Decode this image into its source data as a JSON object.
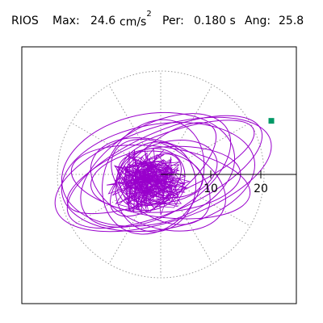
{
  "header": {
    "station": "RIOS",
    "max_label": "Max:",
    "max_value": "24.6",
    "max_unit": "cm/s",
    "max_unit_exp": "2",
    "per_label": "Per:",
    "per_value": "0.180 s",
    "ang_label": "Ang:",
    "ang_value": "25.8"
  },
  "chart_data": {
    "type": "scatter",
    "description_units": "cm/s^2",
    "polar_rings": [
      10,
      20
    ],
    "tick_labels": [
      "10",
      "20"
    ],
    "max_point": {
      "x": 22.1,
      "y": 10.7
    },
    "orbit_loops": [
      {
        "rx": 22.5,
        "ry": 9.5,
        "rot": 18,
        "cx": 0.5,
        "cy": 0.0
      },
      {
        "rx": 21.0,
        "ry": 8.0,
        "rot": 24,
        "cx": 0.8,
        "cy": 0.5
      },
      {
        "rx": 19.5,
        "ry": 10.5,
        "rot": 10,
        "cx": -0.5,
        "cy": -0.5
      },
      {
        "rx": 18.0,
        "ry": 7.0,
        "rot": -8,
        "cx": 0.0,
        "cy": -1.5
      },
      {
        "rx": 16.5,
        "ry": 9.0,
        "rot": 30,
        "cx": -1.0,
        "cy": 0.8
      },
      {
        "rx": 15.0,
        "ry": 6.5,
        "rot": 5,
        "cx": 1.0,
        "cy": -1.0
      },
      {
        "rx": 14.0,
        "ry": 8.5,
        "rot": -20,
        "cx": -0.5,
        "cy": -2.0
      },
      {
        "rx": 13.0,
        "ry": 5.5,
        "rot": 40,
        "cx": 0.5,
        "cy": 1.0
      },
      {
        "rx": 12.0,
        "ry": 9.5,
        "rot": 60,
        "cx": -1.5,
        "cy": -0.5
      },
      {
        "rx": 11.0,
        "ry": 7.0,
        "rot": -35,
        "cx": 0.0,
        "cy": -1.5
      },
      {
        "rx": 10.0,
        "ry": 6.0,
        "rot": 15,
        "cx": 1.5,
        "cy": 0.5
      },
      {
        "rx": 9.0,
        "ry": 8.0,
        "rot": 80,
        "cx": -1.0,
        "cy": -2.5
      },
      {
        "rx": 8.5,
        "ry": 4.5,
        "rot": -10,
        "cx": 0.0,
        "cy": 0.0
      },
      {
        "rx": 7.0,
        "ry": 6.0,
        "rot": 25,
        "cx": -2.0,
        "cy": -1.0
      },
      {
        "rx": 6.0,
        "ry": 4.0,
        "rot": 45,
        "cx": -1.0,
        "cy": -1.0
      },
      {
        "rx": 5.0,
        "ry": 3.5,
        "rot": -30,
        "cx": -2.5,
        "cy": -2.0
      },
      {
        "rx": 4.0,
        "ry": 3.0,
        "rot": 10,
        "cx": -1.5,
        "cy": -0.5
      },
      {
        "rx": 3.0,
        "ry": 2.5,
        "rot": 60,
        "cx": -2.0,
        "cy": -1.5
      },
      {
        "rx": 17.5,
        "ry": 11.0,
        "rot": 12,
        "cx": -2.5,
        "cy": 1.0
      },
      {
        "rx": 20.0,
        "ry": 6.0,
        "rot": 22,
        "cx": 0.0,
        "cy": 1.5
      }
    ],
    "colors": {
      "trace": "#9900cc",
      "marker": "#009966",
      "grid": "#999999"
    }
  }
}
